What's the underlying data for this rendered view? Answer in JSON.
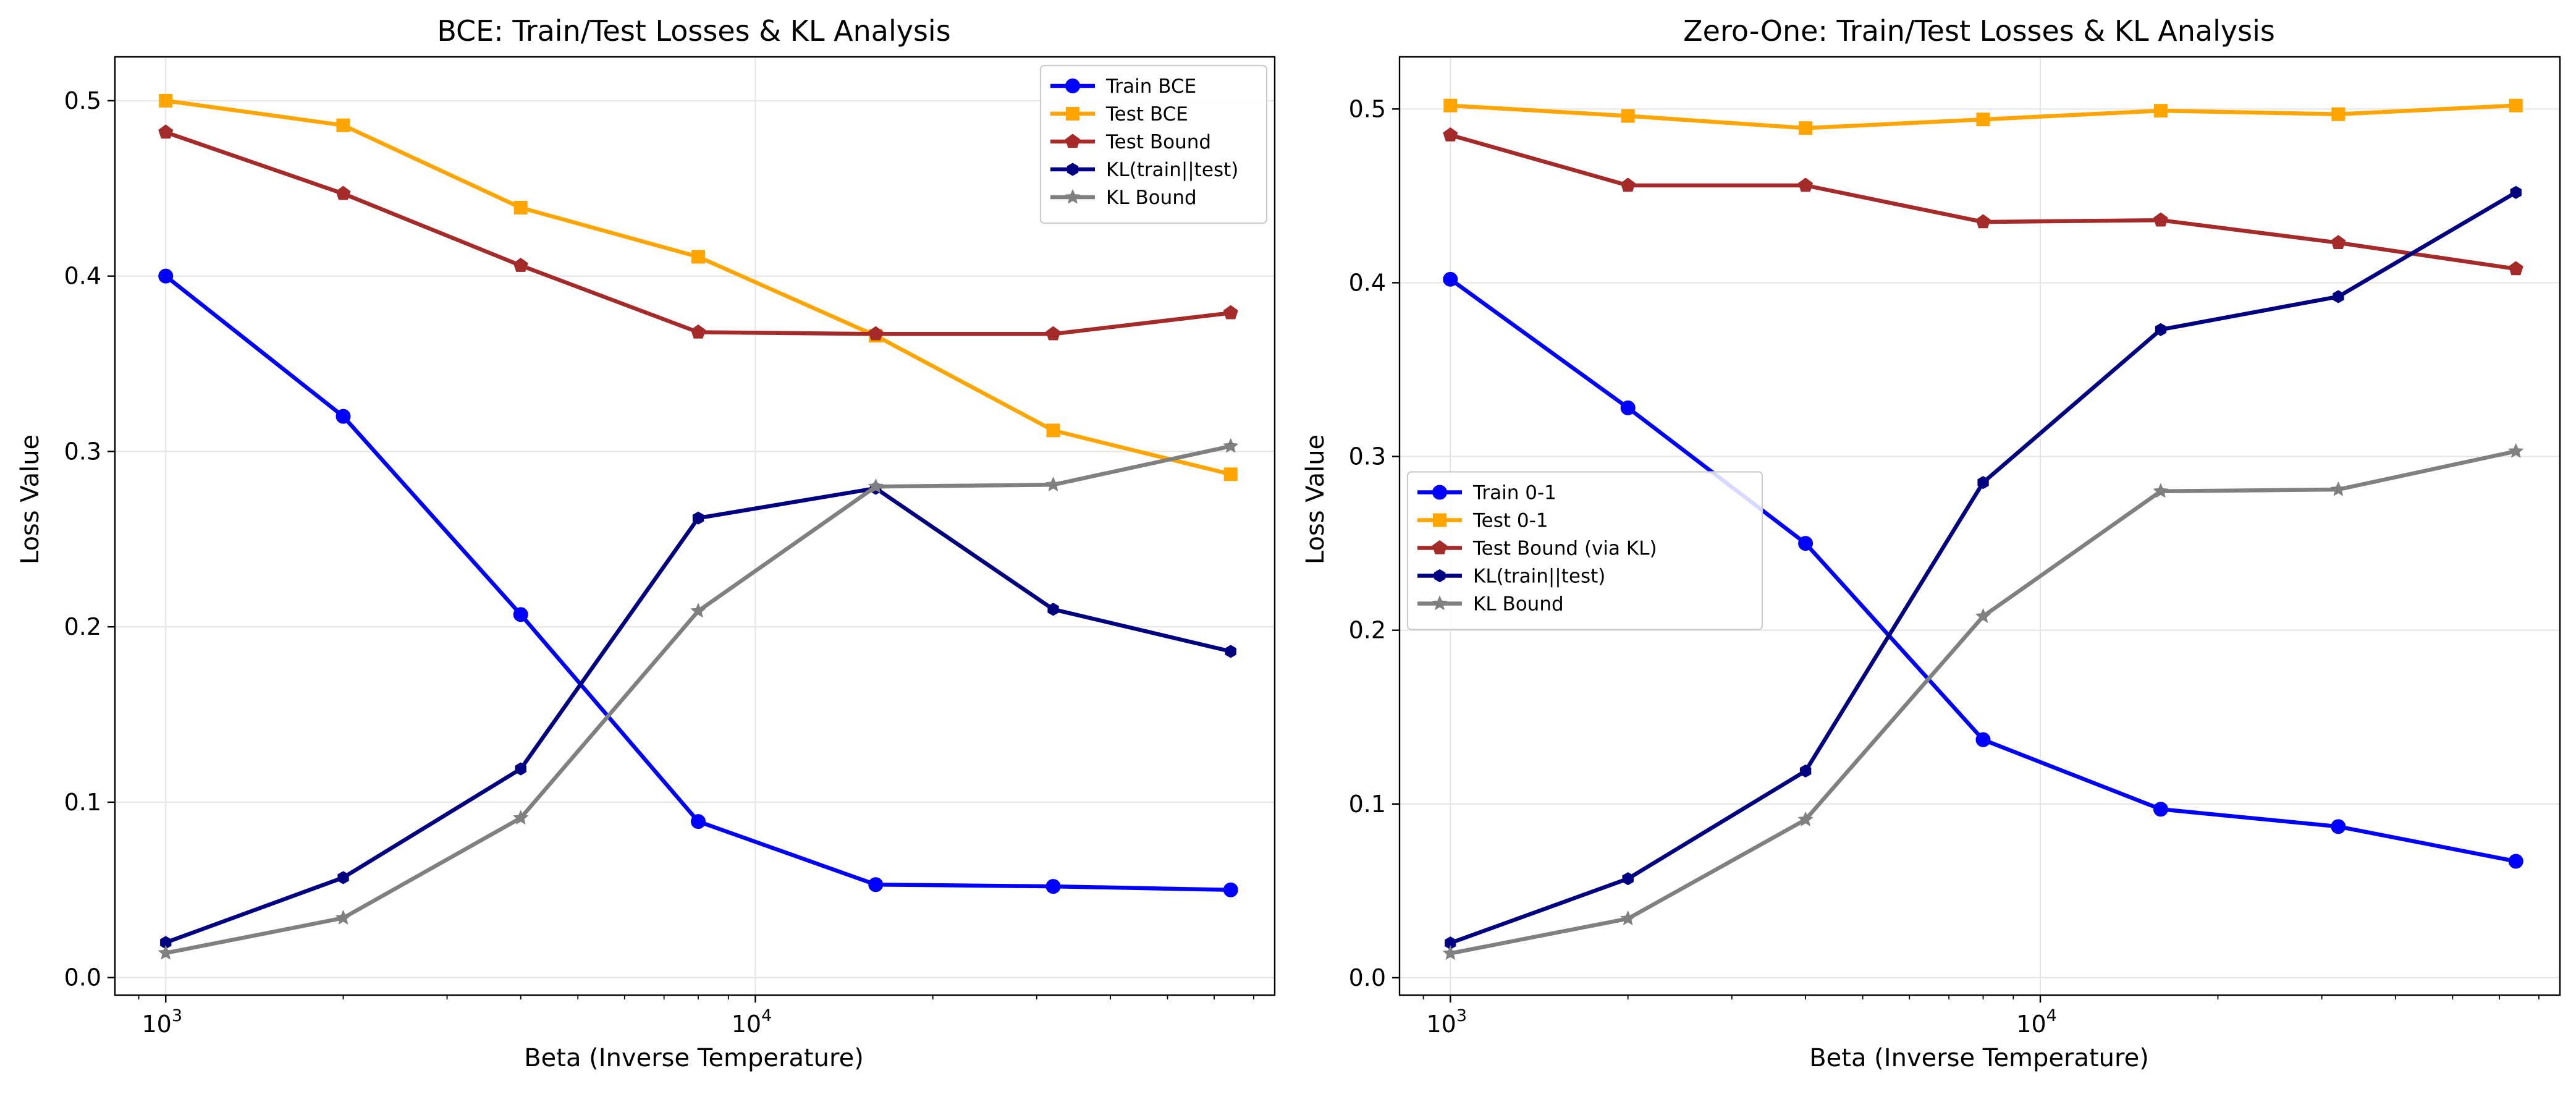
{
  "chart_data": [
    {
      "type": "line",
      "title": "BCE: Train/Test Losses & KL Analysis",
      "xlabel": "Beta (Inverse Temperature)",
      "ylabel": "Loss Value",
      "xscale": "log",
      "xlim": [
        820,
        76000
      ],
      "ylim": [
        -0.01,
        0.525
      ],
      "x": [
        1000,
        2000,
        4000,
        8000,
        16000,
        32000,
        64000
      ],
      "xticks": [
        {
          "value": 1000,
          "base": "10",
          "exp": "3"
        },
        {
          "value": 10000,
          "base": "10",
          "exp": "4"
        }
      ],
      "yticks": [
        0.0,
        0.1,
        0.2,
        0.3,
        0.4,
        0.5
      ],
      "ytick_labels": [
        "0.0",
        "0.1",
        "0.2",
        "0.3",
        "0.4",
        "0.5"
      ],
      "grid": true,
      "legend_position": "upper right",
      "series": [
        {
          "name": "Train BCE",
          "color": "#0000ff",
          "marker": "circle",
          "values": [
            0.4,
            0.32,
            0.207,
            0.089,
            0.053,
            0.052,
            0.05
          ]
        },
        {
          "name": "Test BCE",
          "color": "#ffa500",
          "marker": "square",
          "values": [
            0.5,
            0.486,
            0.439,
            0.411,
            0.366,
            0.312,
            0.287
          ]
        },
        {
          "name": "Test Bound",
          "color": "#a52a2a",
          "marker": "pentagon",
          "values": [
            0.482,
            0.447,
            0.406,
            0.368,
            0.367,
            0.367,
            0.379
          ]
        },
        {
          "name": "KL(train||test)",
          "color": "#000080",
          "marker": "hexagon",
          "values": [
            0.02,
            0.057,
            0.119,
            0.262,
            0.279,
            0.21,
            0.186
          ]
        },
        {
          "name": "KL Bound",
          "color": "#808080",
          "marker": "star",
          "values": [
            0.014,
            0.034,
            0.091,
            0.209,
            0.28,
            0.281,
            0.303
          ]
        }
      ]
    },
    {
      "type": "line",
      "title": "Zero-One: Train/Test Losses & KL Analysis",
      "xlabel": "Beta (Inverse Temperature)",
      "ylabel": "Loss Value",
      "xscale": "log",
      "xlim": [
        820,
        76000
      ],
      "ylim": [
        -0.01,
        0.53
      ],
      "x": [
        1000,
        2000,
        4000,
        8000,
        16000,
        32000,
        64000
      ],
      "xticks": [
        {
          "value": 1000,
          "base": "10",
          "exp": "3"
        },
        {
          "value": 10000,
          "base": "10",
          "exp": "4"
        }
      ],
      "yticks": [
        0.0,
        0.1,
        0.2,
        0.3,
        0.4,
        0.5
      ],
      "ytick_labels": [
        "0.0",
        "0.1",
        "0.2",
        "0.3",
        "0.4",
        "0.5"
      ],
      "grid": true,
      "legend_position": "center left",
      "series": [
        {
          "name": "Train 0-1",
          "color": "#0000ff",
          "marker": "circle",
          "values": [
            0.402,
            0.328,
            0.25,
            0.137,
            0.097,
            0.087,
            0.067
          ]
        },
        {
          "name": "Test 0-1",
          "color": "#ffa500",
          "marker": "square",
          "values": [
            0.502,
            0.496,
            0.489,
            0.494,
            0.499,
            0.497,
            0.502
          ]
        },
        {
          "name": "Test Bound (via KL)",
          "color": "#a52a2a",
          "marker": "pentagon",
          "values": [
            0.485,
            0.456,
            0.456,
            0.435,
            0.436,
            0.423,
            0.408
          ]
        },
        {
          "name": "KL(train||test)",
          "color": "#000080",
          "marker": "hexagon",
          "values": [
            0.02,
            0.057,
            0.119,
            0.285,
            0.373,
            0.392,
            0.452
          ]
        },
        {
          "name": "KL Bound",
          "color": "#808080",
          "marker": "star",
          "values": [
            0.014,
            0.034,
            0.091,
            0.208,
            0.28,
            0.281,
            0.303
          ]
        }
      ]
    }
  ]
}
